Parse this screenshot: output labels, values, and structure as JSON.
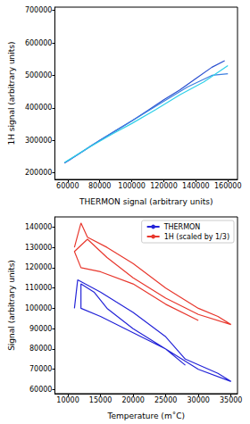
{
  "chart_data": [
    {
      "type": "line",
      "x_label": "THERMON signal (arbitrary units)",
      "y_label": "1H signal (arbitrary units)",
      "xlim": [
        52000,
        166000
      ],
      "xticks": [
        60000,
        80000,
        100000,
        120000,
        140000,
        160000
      ],
      "ylim": [
        180000,
        710000
      ],
      "yticks": [
        200000,
        300000,
        400000,
        500000,
        600000,
        700000
      ],
      "grid": false,
      "series": [
        {
          "color": "#2a4fd0",
          "x": [
            58000,
            70000,
            80000,
            90000,
            100000,
            110000,
            120000,
            130000,
            140000,
            150000,
            158000
          ],
          "values": [
            230000,
            268000,
            300000,
            330000,
            360000,
            392000,
            425000,
            455000,
            490000,
            525000,
            545000
          ]
        },
        {
          "color": "#3d7fe0",
          "x": [
            60000,
            75000,
            90000,
            105000,
            120000,
            135000,
            150000,
            160000
          ],
          "values": [
            236000,
            285000,
            330000,
            375000,
            420000,
            465000,
            500000,
            505000
          ]
        },
        {
          "color": "#2fd0e8",
          "x": [
            58000,
            72000,
            88000,
            100000,
            115000,
            130000,
            145000,
            160000
          ],
          "values": [
            232000,
            275000,
            320000,
            352000,
            395000,
            440000,
            480000,
            530000
          ]
        }
      ]
    },
    {
      "type": "line",
      "x_label": "Temperature (m˚C)",
      "y_label": "Signal (arbitrary units)",
      "xlim": [
        8000,
        36000
      ],
      "xticks": [
        10000,
        15000,
        20000,
        25000,
        30000,
        35000
      ],
      "ylim": [
        58000,
        145000
      ],
      "yticks": [
        60000,
        70000,
        80000,
        90000,
        100000,
        110000,
        120000,
        130000,
        140000
      ],
      "grid": false,
      "legend": "upper right",
      "series": [
        {
          "name": "THERMON",
          "color": "#2424d8",
          "x": [
            11000,
            11500,
            15000,
            20000,
            25000,
            28000,
            33000,
            35000,
            30000,
            25000,
            20000,
            16000,
            14000,
            12000,
            12000,
            15000,
            20000,
            25000,
            28000
          ],
          "values": [
            100000,
            114000,
            108000,
            98000,
            86000,
            75000,
            68000,
            64000,
            70000,
            80000,
            90000,
            100000,
            108000,
            112000,
            100000,
            96000,
            88000,
            80000,
            72000
          ]
        },
        {
          "name": "1H (scaled by 1/3)",
          "color": "#e8382e",
          "x": [
            11000,
            12000,
            13000,
            16000,
            20000,
            25000,
            30000,
            33000,
            35000,
            30000,
            25000,
            20000,
            16000,
            13000,
            11000,
            12000,
            15000,
            20000,
            25000,
            30000
          ],
          "values": [
            130000,
            142000,
            135000,
            130000,
            122000,
            110000,
            100000,
            96000,
            92000,
            97000,
            105000,
            115000,
            125000,
            134000,
            128000,
            120000,
            118000,
            112000,
            102000,
            94000
          ]
        }
      ]
    }
  ]
}
